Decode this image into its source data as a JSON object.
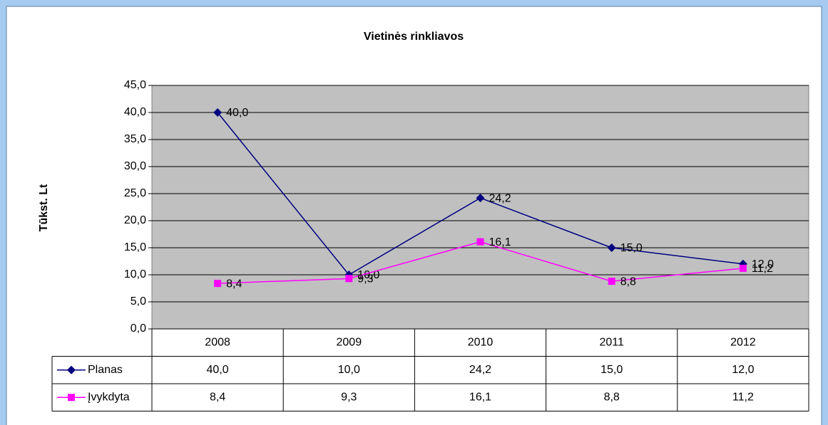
{
  "chart_data": {
    "type": "line",
    "title": "Vietinės rinkliavos",
    "y_label": "Tūkst. Lt",
    "categories": [
      "2008",
      "2009",
      "2010",
      "2011",
      "2012"
    ],
    "series": [
      {
        "name": "Planas",
        "color": "#000080",
        "marker": "diamond",
        "values": [
          40,
          10,
          24.2,
          15,
          12
        ],
        "value_labels": [
          "40,0",
          "10,0",
          "24,2",
          "15,0",
          "12,0"
        ]
      },
      {
        "name": "Įvykdyta",
        "color": "#ff00ff",
        "marker": "square",
        "values": [
          8.4,
          9.3,
          16.1,
          8.8,
          11.2
        ],
        "value_labels": [
          "8,4",
          "9,3",
          "16,1",
          "8,8",
          "11,2"
        ]
      }
    ],
    "ylim": [
      0,
      45
    ],
    "yticks": [
      {
        "value": 0,
        "label": "0,0"
      },
      {
        "value": 5,
        "label": "5,0"
      },
      {
        "value": 10,
        "label": "10,0"
      },
      {
        "value": 15,
        "label": "15,0"
      },
      {
        "value": 20,
        "label": "20,0"
      },
      {
        "value": 25,
        "label": "25,0"
      },
      {
        "value": 30,
        "label": "30,0"
      },
      {
        "value": 35,
        "label": "35,0"
      },
      {
        "value": 40,
        "label": "40,0"
      },
      {
        "value": 45,
        "label": "45,0"
      }
    ],
    "grid": true,
    "data_table": true
  }
}
